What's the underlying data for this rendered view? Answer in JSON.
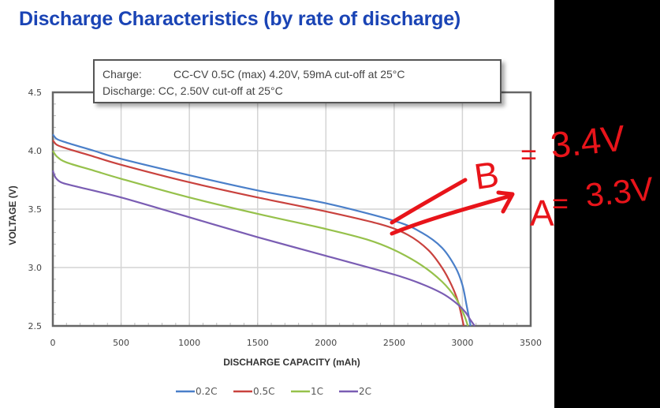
{
  "title": "Discharge Characteristics (by rate of discharge)",
  "info_box": {
    "charge_label": "Charge:",
    "charge_value": "CC-CV 0.5C (max) 4.20V, 59mA cut-off at 25°C",
    "discharge_label": "Discharge:",
    "discharge_value": " CC, 2.50V cut-off at 25°C"
  },
  "chart_data": {
    "type": "line",
    "title": "Discharge Characteristics (by rate of discharge)",
    "xlabel": "DISCHARGE CAPACITY (mAh)",
    "ylabel": "VOLTAGE (V)",
    "xlim": [
      0,
      3500
    ],
    "ylim": [
      2.5,
      4.5
    ],
    "xticks": [
      0,
      500,
      1000,
      1500,
      2000,
      2500,
      3000,
      3500
    ],
    "yticks": [
      2.5,
      3.0,
      3.5,
      4.0,
      4.5
    ],
    "xtick_labels": [
      "0",
      "500",
      "1000",
      "1500",
      "2000",
      "2500",
      "3000",
      "3500"
    ],
    "ytick_labels": [
      "2.5",
      "3.0",
      "3.5",
      "4.0",
      "4.5"
    ],
    "grid": true,
    "legend_position": "bottom",
    "series": [
      {
        "name": "0.2C",
        "color": "#4a7fc9",
        "x": [
          0,
          30,
          100,
          300,
          500,
          1000,
          1500,
          2000,
          2500,
          2700,
          2850,
          2950,
          3000,
          3030,
          3060
        ],
        "y": [
          4.14,
          4.1,
          4.07,
          4.0,
          3.93,
          3.79,
          3.66,
          3.55,
          3.4,
          3.3,
          3.17,
          3.0,
          2.85,
          2.68,
          2.5
        ]
      },
      {
        "name": "0.5C",
        "color": "#c9423e",
        "x": [
          0,
          30,
          100,
          300,
          500,
          1000,
          1500,
          2000,
          2400,
          2600,
          2750,
          2850,
          2920,
          2970,
          3010
        ],
        "y": [
          4.09,
          4.05,
          4.02,
          3.95,
          3.88,
          3.73,
          3.6,
          3.48,
          3.37,
          3.28,
          3.15,
          3.0,
          2.85,
          2.7,
          2.5
        ]
      },
      {
        "name": "1C",
        "color": "#96c14b",
        "x": [
          0,
          30,
          100,
          300,
          500,
          1000,
          1500,
          2000,
          2300,
          2500,
          2700,
          2850,
          2950,
          3010,
          3040
        ],
        "y": [
          4.0,
          3.95,
          3.9,
          3.83,
          3.76,
          3.6,
          3.46,
          3.33,
          3.24,
          3.15,
          3.02,
          2.88,
          2.74,
          2.6,
          2.5
        ]
      },
      {
        "name": "2C",
        "color": "#7a5db3",
        "x": [
          0,
          20,
          60,
          150,
          500,
          1000,
          1500,
          2000,
          2500,
          2700,
          2850,
          2950,
          3020,
          3060,
          3090
        ],
        "y": [
          3.83,
          3.77,
          3.73,
          3.7,
          3.6,
          3.43,
          3.26,
          3.1,
          2.94,
          2.86,
          2.78,
          2.7,
          2.62,
          2.55,
          2.5
        ]
      }
    ],
    "annotations": [
      {
        "label": "B",
        "text": "B = 3.4V",
        "target_x": 2480,
        "target_y": 3.4
      },
      {
        "label": "A",
        "text": "A = 3.3V",
        "target_x": 2480,
        "target_y": 3.3
      }
    ]
  },
  "legend": [
    {
      "label": "0.2C",
      "color": "#4a7fc9"
    },
    {
      "label": "0.5C",
      "color": "#c9423e"
    },
    {
      "label": "1C",
      "color": "#96c14b"
    },
    {
      "label": "2C",
      "color": "#7a5db3"
    }
  ],
  "annotation_color": "#e8141a",
  "annotation_texts": {
    "b_label": "B",
    "b_eq": "=",
    "b_value": "3.4V",
    "a_label": "A",
    "a_eq": "=",
    "a_value": "3.3V"
  }
}
